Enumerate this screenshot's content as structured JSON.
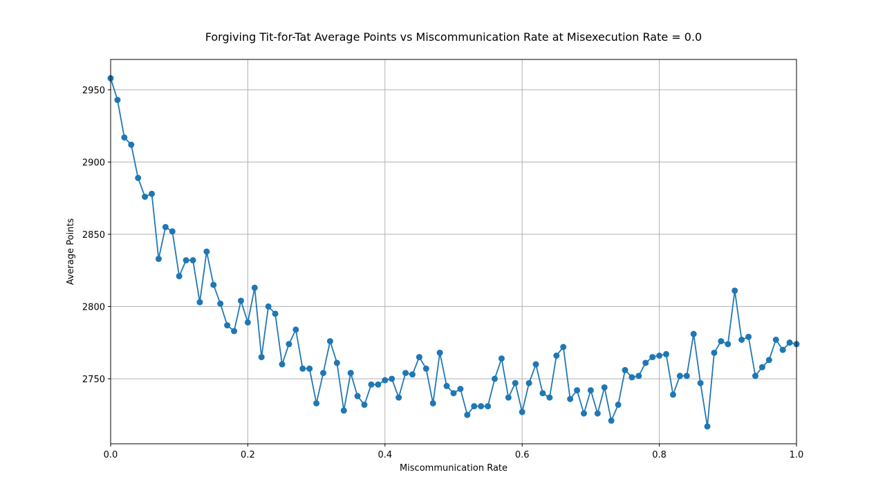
{
  "chart_data": {
    "type": "line",
    "title": "Forgiving Tit-for-Tat Average Points vs Miscommunication Rate at Misexecution Rate = 0.0",
    "xlabel": "Miscommunication Rate",
    "ylabel": "Average Points",
    "xlim": [
      0.0,
      1.0
    ],
    "ylim": [
      2705,
      2971
    ],
    "xticks": [
      0.0,
      0.2,
      0.4,
      0.6,
      0.8,
      1.0
    ],
    "xtick_labels": [
      "0.0",
      "0.2",
      "0.4",
      "0.6",
      "0.8",
      "1.0"
    ],
    "yticks": [
      2750,
      2800,
      2850,
      2900,
      2950
    ],
    "ytick_labels": [
      "2750",
      "2800",
      "2850",
      "2900",
      "2950"
    ],
    "grid": true,
    "legend": "none",
    "marker": "circle",
    "line_color": "#1f77b4",
    "series": [
      {
        "x": [
          0.0,
          0.01,
          0.02,
          0.03,
          0.04,
          0.05,
          0.06,
          0.07,
          0.08,
          0.09,
          0.1,
          0.11,
          0.12,
          0.13,
          0.14,
          0.15,
          0.16,
          0.17,
          0.18,
          0.19,
          0.2,
          0.21,
          0.22,
          0.23,
          0.24,
          0.25,
          0.26,
          0.27,
          0.28,
          0.29,
          0.3,
          0.31,
          0.32,
          0.33,
          0.34,
          0.35,
          0.36,
          0.37,
          0.38,
          0.39,
          0.4,
          0.41,
          0.42,
          0.43,
          0.44,
          0.45,
          0.46,
          0.47,
          0.48,
          0.49,
          0.5,
          0.51,
          0.52,
          0.53,
          0.54,
          0.55,
          0.56,
          0.57,
          0.58,
          0.59,
          0.6,
          0.61,
          0.62,
          0.63,
          0.64,
          0.65,
          0.66,
          0.67,
          0.68,
          0.69,
          0.7,
          0.71,
          0.72,
          0.73,
          0.74,
          0.75,
          0.76,
          0.77,
          0.78,
          0.79,
          0.8,
          0.81,
          0.82,
          0.83,
          0.84,
          0.85,
          0.86,
          0.87,
          0.88,
          0.89,
          0.9,
          0.91,
          0.92,
          0.93,
          0.94,
          0.95,
          0.96,
          0.97,
          0.98,
          0.99,
          1.0
        ],
        "y": [
          2958,
          2943,
          2917,
          2912,
          2889,
          2876,
          2878,
          2833,
          2855,
          2852,
          2821,
          2832,
          2832,
          2803,
          2838,
          2815,
          2802,
          2787,
          2783,
          2804,
          2789,
          2813,
          2765,
          2800,
          2795,
          2760,
          2774,
          2784,
          2757,
          2757,
          2733,
          2754,
          2776,
          2761,
          2728,
          2754,
          2738,
          2732,
          2746,
          2746,
          2749,
          2750,
          2737,
          2754,
          2753,
          2765,
          2757,
          2733,
          2768,
          2745,
          2740,
          2743,
          2725,
          2731,
          2731,
          2731,
          2750,
          2764,
          2737,
          2747,
          2727,
          2747,
          2760,
          2740,
          2737,
          2766,
          2772,
          2736,
          2742,
          2726,
          2742,
          2726,
          2744,
          2721,
          2732,
          2756,
          2751,
          2752,
          2761,
          2765,
          2766,
          2767,
          2739,
          2752,
          2752,
          2781,
          2747,
          2717,
          2768,
          2776,
          2774,
          2811,
          2777,
          2779,
          2752,
          2758,
          2763,
          2777,
          2770,
          2775,
          2774
        ]
      }
    ]
  }
}
